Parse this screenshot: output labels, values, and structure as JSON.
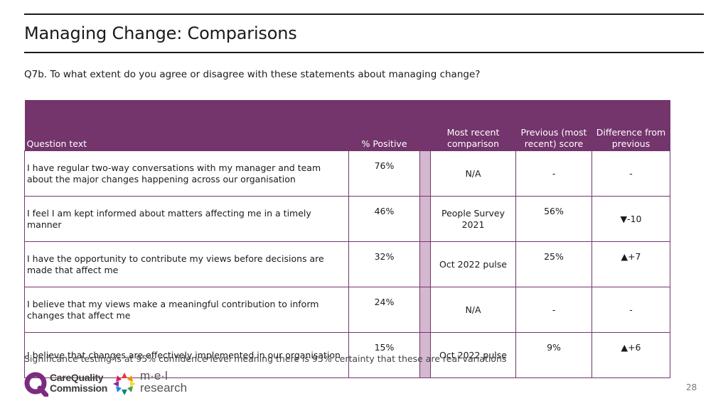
{
  "header": {
    "title": "Managing Change: Comparisons",
    "question": "Q7b. To what extent do you agree or disagree with these statements about managing change?"
  },
  "table": {
    "columns": {
      "question_text": "Question text",
      "positive": "% Positive",
      "comparison": "Most recent comparison",
      "previous": "Previous (most recent) score",
      "difference": "Difference from previous"
    },
    "rows": [
      {
        "text": "I have regular two-way conversations with my manager and team about the major changes happening across our organisation",
        "positive": "76%",
        "comparison": "N/A",
        "previous": "-",
        "difference": "-"
      },
      {
        "text": "I feel I am kept informed about matters affecting me in a timely manner",
        "positive": "46%",
        "comparison": "People Survey 2021",
        "previous": "56%",
        "difference": "▼-10"
      },
      {
        "text": "I have the opportunity to contribute my views before decisions are made that affect me",
        "positive": "32%",
        "comparison": "Oct 2022 pulse",
        "previous": "25%",
        "difference": "▲+7"
      },
      {
        "text": "I believe that my views make a meaningful contribution to inform changes that affect me",
        "positive": "24%",
        "comparison": "N/A",
        "previous": "-",
        "difference": "-"
      },
      {
        "text": "I believe that changes are effectively implemented in our organisation",
        "positive": "15%",
        "comparison": "Oct 2022 pulse",
        "previous": "9%",
        "difference": "▲+6"
      }
    ]
  },
  "footnote": "Significance testing is at 95% confidence level meaning there is 95% certainty that these are real variations",
  "logos": {
    "cqc_line1": "CareQuality",
    "cqc_line2": "Commission",
    "mel_line1": "m·e·l",
    "mel_line2": "research"
  },
  "page_number": "28",
  "colors": {
    "header_purple": "#73356c",
    "spacer_lilac": "#d4b8d0"
  }
}
